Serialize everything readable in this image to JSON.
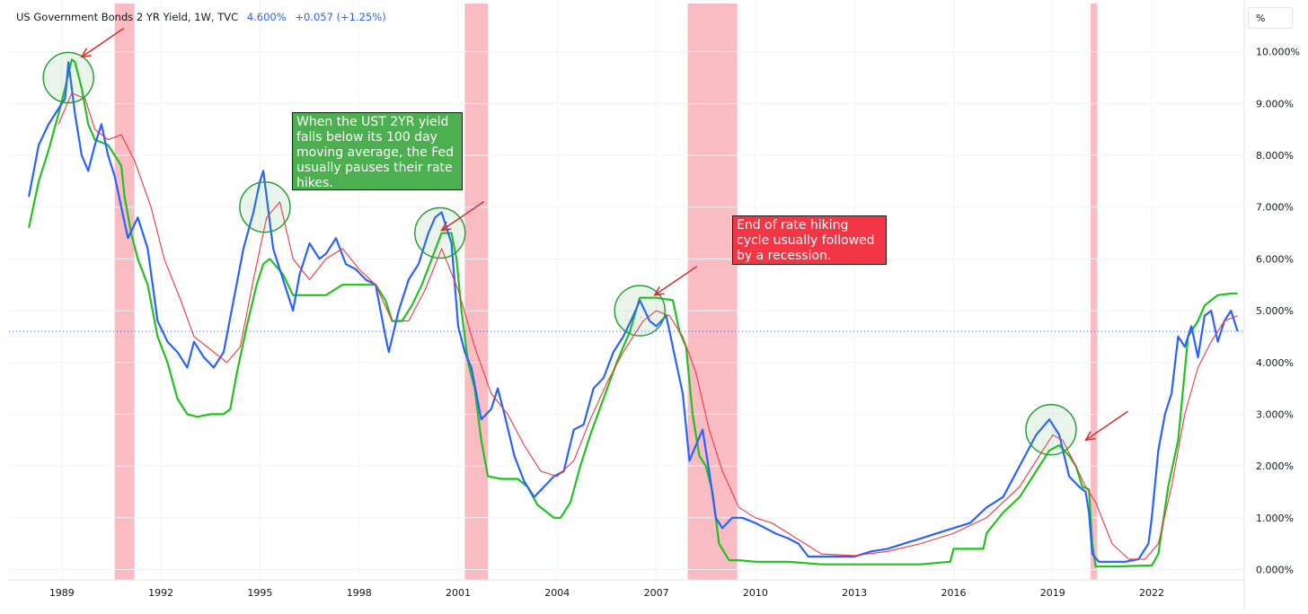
{
  "header": {
    "symbol": "US Government Bonds 2 YR Yield, 1W, TVC",
    "last": "4.600%",
    "change": "+0.057 (+1.25%)"
  },
  "scale_button": "%",
  "annotations": {
    "fed_pause": "When the UST 2YR yield falls below its 100 day moving average, the Fed usually pauses their rate hikes.",
    "recession": "End of rate hiking cycle usually followed by a recession."
  },
  "colors": {
    "yield": "#2962ff",
    "moving_average": "#f23645",
    "fed_rate": "#22c11f",
    "recession": "#f6a5ad",
    "annotation_green": "#4caf50",
    "annotation_red": "#f23645",
    "last_price_line": "#2962ff"
  },
  "chart_data": {
    "type": "line",
    "x_ticks": [
      "1989",
      "1992",
      "1995",
      "1998",
      "2001",
      "2004",
      "2007",
      "2010",
      "2013",
      "2016",
      "2019",
      "2022"
    ],
    "y_ticks": [
      "10.000%",
      "9.000%",
      "8.000%",
      "7.000%",
      "6.000%",
      "5.000%",
      "4.000%",
      "3.000%",
      "2.000%",
      "1.000%",
      "0.000%"
    ],
    "xlim": [
      1987.4,
      2024.8
    ],
    "ylim": [
      -0.2,
      11.0
    ],
    "last_value": 4.6,
    "recessions": [
      [
        1990.6,
        1991.2
      ],
      [
        2001.2,
        2001.9
      ],
      [
        2007.95,
        2009.45
      ],
      [
        2020.15,
        2020.35
      ]
    ],
    "highlights": [
      [
        1989.2,
        9.5
      ],
      [
        1995.15,
        7.0
      ],
      [
        2000.45,
        6.5
      ],
      [
        2006.5,
        5.0
      ],
      [
        2018.95,
        2.7
      ]
    ],
    "arrows": [
      [
        1989.6,
        9.9
      ],
      [
        2000.5,
        6.55
      ],
      [
        2006.95,
        5.3
      ],
      [
        2020.0,
        2.5
      ]
    ],
    "series": [
      {
        "name": "",
        "color": "#2962ff",
        "x": [
          1988.0,
          1988.3,
          1988.6,
          1988.9,
          1989.1,
          1989.2,
          1989.4,
          1989.6,
          1989.8,
          1990.0,
          1990.2,
          1990.4,
          1990.6,
          1990.8,
          1991.0,
          1991.3,
          1991.6,
          1991.9,
          1992.2,
          1992.5,
          1992.8,
          1993.0,
          1993.3,
          1993.6,
          1993.9,
          1994.2,
          1994.5,
          1994.8,
          1995.0,
          1995.1,
          1995.4,
          1995.7,
          1996.0,
          1996.2,
          1996.5,
          1996.8,
          1997.0,
          1997.3,
          1997.6,
          1997.9,
          1998.2,
          1998.5,
          1998.8,
          1998.9,
          1999.2,
          1999.5,
          1999.8,
          2000.1,
          2000.3,
          2000.5,
          2000.8,
          2001.0,
          2001.2,
          2001.4,
          2001.7,
          2002.0,
          2002.2,
          2002.4,
          2002.7,
          2003.0,
          2003.3,
          2003.6,
          2003.9,
          2004.2,
          2004.5,
          2004.8,
          2005.1,
          2005.4,
          2005.7,
          2006.0,
          2006.3,
          2006.5,
          2006.8,
          2007.0,
          2007.3,
          2007.6,
          2007.8,
          2008.0,
          2008.2,
          2008.4,
          2008.6,
          2008.8,
          2009.0,
          2009.3,
          2009.6,
          2010.0,
          2010.3,
          2010.6,
          2011.0,
          2011.3,
          2011.6,
          2012.0,
          2012.5,
          2013.0,
          2013.5,
          2014.0,
          2014.5,
          2015.0,
          2015.5,
          2016.0,
          2016.5,
          2017.0,
          2017.5,
          2018.0,
          2018.5,
          2018.9,
          2019.2,
          2019.5,
          2019.8,
          2020.0,
          2020.1,
          2020.2,
          2020.4,
          2020.8,
          2021.2,
          2021.6,
          2021.9,
          2022.0,
          2022.2,
          2022.4,
          2022.6,
          2022.8,
          2023.0,
          2023.2,
          2023.4,
          2023.6,
          2023.8,
          2024.0,
          2024.2,
          2024.4,
          2024.6
        ],
        "y": [
          7.2,
          8.2,
          8.6,
          8.9,
          9.1,
          9.8,
          8.8,
          8.0,
          7.7,
          8.2,
          8.6,
          8.0,
          7.6,
          7.0,
          6.4,
          6.8,
          6.2,
          4.8,
          4.4,
          4.2,
          3.9,
          4.4,
          4.1,
          3.9,
          4.2,
          5.2,
          6.2,
          6.9,
          7.5,
          7.7,
          6.2,
          5.6,
          5.0,
          5.7,
          6.3,
          6.0,
          6.1,
          6.4,
          5.9,
          5.8,
          5.6,
          5.5,
          4.5,
          4.2,
          5.0,
          5.6,
          5.9,
          6.5,
          6.8,
          6.9,
          6.3,
          4.7,
          4.2,
          3.9,
          2.9,
          3.1,
          3.5,
          3.0,
          2.2,
          1.7,
          1.4,
          1.6,
          1.8,
          1.9,
          2.7,
          2.8,
          3.5,
          3.7,
          4.2,
          4.5,
          4.9,
          5.2,
          4.8,
          4.7,
          4.9,
          4.0,
          3.4,
          2.1,
          2.4,
          2.7,
          1.9,
          1.0,
          0.8,
          1.0,
          1.0,
          0.9,
          0.8,
          0.7,
          0.6,
          0.5,
          0.25,
          0.25,
          0.25,
          0.25,
          0.35,
          0.4,
          0.5,
          0.6,
          0.7,
          0.8,
          0.9,
          1.2,
          1.4,
          2.0,
          2.6,
          2.9,
          2.6,
          1.8,
          1.6,
          1.5,
          1.1,
          0.3,
          0.15,
          0.15,
          0.15,
          0.2,
          0.5,
          1.0,
          2.3,
          3.0,
          3.4,
          4.5,
          4.3,
          4.7,
          4.1,
          4.9,
          5.0,
          4.4,
          4.8,
          5.0,
          4.6
        ]
      },
      {
        "name": "",
        "color": "#f23645",
        "x": [
          1988.9,
          1989.3,
          1989.7,
          1990.0,
          1990.4,
          1990.8,
          1991.2,
          1991.7,
          1992.1,
          1992.6,
          1993.0,
          1993.6,
          1994.0,
          1994.4,
          1994.8,
          1995.2,
          1995.6,
          1996.0,
          1996.5,
          1997.0,
          1997.5,
          1998.0,
          1998.5,
          1999.0,
          1999.5,
          2000.0,
          2000.5,
          2001.0,
          2001.5,
          2002.0,
          2002.5,
          2003.0,
          2003.5,
          2004.0,
          2004.5,
          2005.0,
          2005.5,
          2006.0,
          2006.6,
          2007.0,
          2007.4,
          2007.8,
          2008.2,
          2008.6,
          2009.0,
          2009.5,
          2010.0,
          2010.5,
          2011.0,
          2011.5,
          2012.0,
          2013.0,
          2014.0,
          2015.0,
          2016.0,
          2017.0,
          2018.0,
          2018.5,
          2019.0,
          2019.3,
          2019.7,
          2020.0,
          2020.3,
          2020.8,
          2021.3,
          2021.8,
          2022.2,
          2022.6,
          2023.0,
          2023.4,
          2023.8,
          2024.2,
          2024.6
        ],
        "y": [
          8.6,
          9.2,
          9.1,
          8.5,
          8.3,
          8.4,
          7.9,
          7.0,
          6.0,
          5.2,
          4.5,
          4.2,
          4.0,
          4.3,
          5.6,
          6.8,
          7.1,
          6.0,
          5.6,
          6.0,
          6.2,
          5.8,
          5.5,
          4.8,
          4.8,
          5.4,
          6.2,
          5.4,
          4.3,
          3.4,
          3.0,
          2.4,
          1.9,
          1.8,
          2.1,
          2.9,
          3.6,
          4.2,
          4.8,
          5.0,
          4.9,
          4.5,
          3.8,
          2.7,
          1.9,
          1.2,
          1.0,
          0.9,
          0.7,
          0.5,
          0.3,
          0.27,
          0.35,
          0.5,
          0.7,
          1.0,
          1.6,
          2.1,
          2.6,
          2.5,
          2.0,
          1.6,
          1.3,
          0.5,
          0.2,
          0.2,
          0.5,
          1.6,
          3.0,
          3.9,
          4.4,
          4.8,
          4.9
        ]
      },
      {
        "name": "",
        "color": "#22c11f",
        "x": [
          1988.0,
          1988.3,
          1988.6,
          1988.9,
          1989.1,
          1989.3,
          1989.4,
          1989.6,
          1989.8,
          1990.0,
          1990.4,
          1990.8,
          1990.9,
          1991.1,
          1991.3,
          1991.6,
          1991.9,
          1992.2,
          1992.5,
          1992.8,
          1993.1,
          1993.5,
          1993.9,
          1994.1,
          1994.3,
          1994.6,
          1994.9,
          1995.1,
          1995.3,
          1995.7,
          1996.0,
          1996.5,
          1997.0,
          1997.5,
          1998.0,
          1998.5,
          1998.8,
          1999.0,
          1999.3,
          1999.6,
          1999.9,
          2000.2,
          2000.5,
          2000.8,
          2000.95,
          2001.1,
          2001.3,
          2001.5,
          2001.7,
          2001.9,
          2002.3,
          2002.8,
          2003.1,
          2003.4,
          2003.9,
          2004.1,
          2004.4,
          2004.7,
          2005.0,
          2005.4,
          2005.8,
          2006.2,
          2006.5,
          2007.0,
          2007.5,
          2007.7,
          2007.9,
          2008.1,
          2008.3,
          2008.5,
          2008.7,
          2008.9,
          2009.2,
          2009.5,
          2010.0,
          2011.0,
          2012.0,
          2013.0,
          2014.0,
          2015.0,
          2015.9,
          2016.0,
          2016.9,
          2017.0,
          2017.5,
          2018.0,
          2018.5,
          2018.9,
          2019.2,
          2019.5,
          2019.7,
          2019.9,
          2020.1,
          2020.2,
          2020.3,
          2021.0,
          2021.5,
          2022.0,
          2022.2,
          2022.5,
          2022.8,
          2023.1,
          2023.4,
          2023.6,
          2024.0,
          2024.4,
          2024.6
        ],
        "y": [
          6.6,
          7.5,
          8.1,
          8.8,
          9.3,
          9.85,
          9.8,
          9.3,
          8.6,
          8.3,
          8.2,
          7.8,
          7.2,
          6.5,
          6.0,
          5.5,
          4.5,
          4.0,
          3.3,
          3.0,
          2.95,
          3.0,
          3.0,
          3.1,
          3.8,
          4.7,
          5.5,
          5.9,
          6.0,
          5.7,
          5.3,
          5.3,
          5.3,
          5.5,
          5.5,
          5.5,
          5.2,
          4.8,
          4.8,
          5.1,
          5.5,
          6.0,
          6.5,
          6.5,
          6.0,
          5.0,
          4.0,
          3.5,
          2.5,
          1.8,
          1.75,
          1.75,
          1.6,
          1.25,
          1.0,
          1.0,
          1.3,
          2.0,
          2.6,
          3.3,
          4.0,
          4.6,
          5.25,
          5.25,
          5.2,
          4.6,
          4.3,
          3.0,
          2.2,
          2.0,
          1.5,
          0.5,
          0.18,
          0.18,
          0.15,
          0.15,
          0.1,
          0.1,
          0.1,
          0.1,
          0.15,
          0.4,
          0.4,
          0.7,
          1.1,
          1.4,
          1.9,
          2.3,
          2.4,
          2.2,
          2.0,
          1.6,
          1.55,
          0.5,
          0.06,
          0.06,
          0.07,
          0.08,
          0.3,
          1.6,
          2.5,
          4.5,
          4.8,
          5.1,
          5.3,
          5.33,
          5.33
        ]
      }
    ]
  }
}
